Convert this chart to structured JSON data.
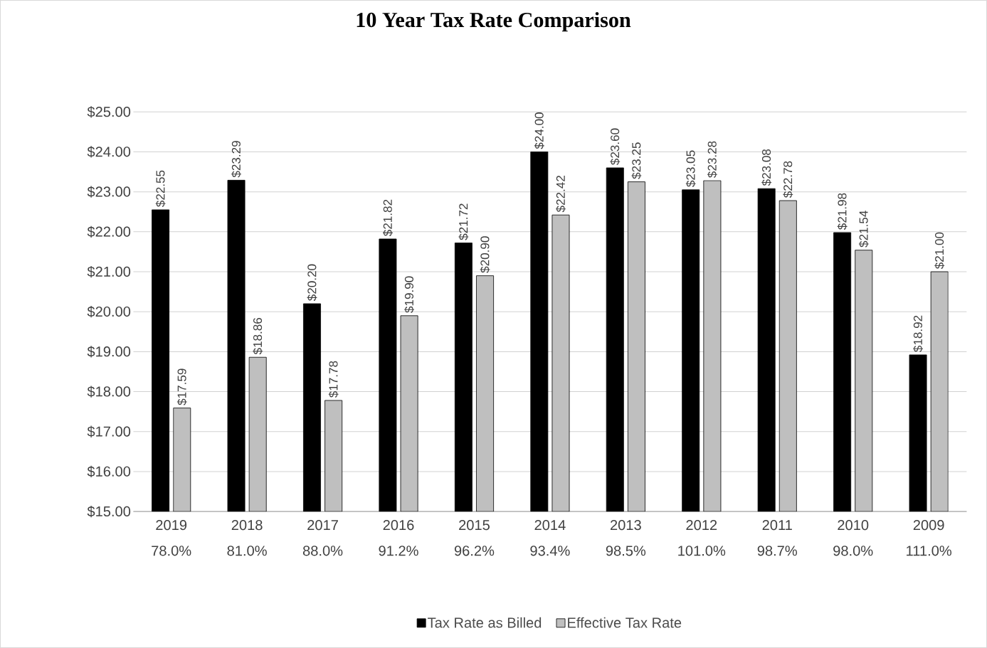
{
  "chart_data": {
    "type": "bar",
    "title": "10 Year Tax Rate Comparison",
    "categories": [
      "2019 78.0%",
      "2018 81.0%",
      "2017 88.0%",
      "2016 91.2%",
      "2015 96.2%",
      "2014 93.4%",
      "2013 98.5%",
      "2012 101.0%",
      "2011 98.7%",
      "2010 98.0%",
      "2009 111.0%"
    ],
    "series": [
      {
        "name": "Tax Rate as Billed",
        "color": "#000000",
        "values": [
          22.55,
          23.29,
          20.2,
          21.82,
          21.72,
          24.0,
          23.6,
          23.05,
          23.08,
          21.98,
          18.92
        ],
        "value_labels": [
          "$22.55",
          "$23.29",
          "$20.20",
          "$21.82",
          "$21.72",
          "$24.00",
          "$23.60",
          "$23.05",
          "$23.08",
          "$21.98",
          "$18.92"
        ]
      },
      {
        "name": "Effective Tax Rate",
        "color": "#bfbfbf",
        "values": [
          17.59,
          18.86,
          17.78,
          19.9,
          20.9,
          22.42,
          23.25,
          23.28,
          22.78,
          21.54,
          21.0
        ],
        "value_labels": [
          "$17.59",
          "$18.86",
          "$17.78",
          "$19.90",
          "$20.90",
          "$22.42",
          "$23.25",
          "$23.28",
          "$22.78",
          "$21.54",
          "$21.00"
        ]
      }
    ],
    "ylim": [
      15,
      25
    ],
    "yticks": [
      {
        "value": 15,
        "label": "$15.00"
      },
      {
        "value": 16,
        "label": "$16.00"
      },
      {
        "value": 17,
        "label": "$17.00"
      },
      {
        "value": 18,
        "label": "$18.00"
      },
      {
        "value": 19,
        "label": "$19.00"
      },
      {
        "value": 20,
        "label": "$20.00"
      },
      {
        "value": 21,
        "label": "$21.00"
      },
      {
        "value": 22,
        "label": "$22.00"
      },
      {
        "value": 23,
        "label": "$23.00"
      },
      {
        "value": 24,
        "label": "$24.00"
      },
      {
        "value": 25,
        "label": "$25.00"
      }
    ],
    "grid": "y",
    "legend": "bottom"
  }
}
